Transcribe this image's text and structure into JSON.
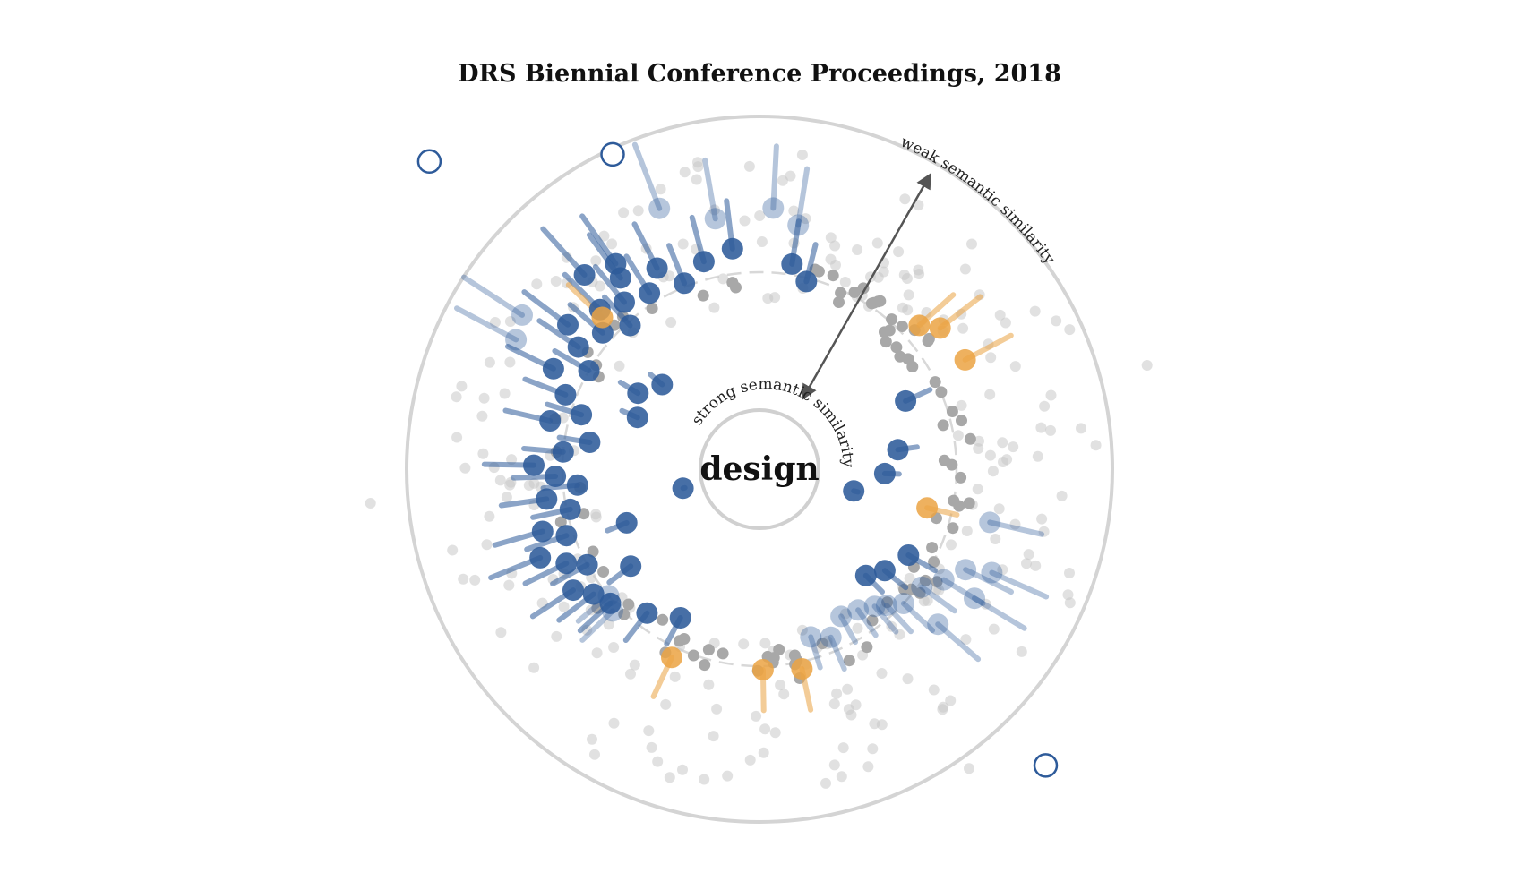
{
  "chart_data": {
    "type": "scatter",
    "subtype": "radial-similarity",
    "title": "DRS Biennial Conference Proceedings, 2018",
    "center_term": "design",
    "labels": {
      "outer": "weak semantic similarity",
      "inner": "strong semantic similarity"
    },
    "axis": {
      "radial_meaning": "semantic distance from center term",
      "range": [
        0,
        1
      ],
      "reference_ring": 0.55
    },
    "colors": {
      "highlight_blue": "#2e5b9a",
      "highlight_orange": "#eba343",
      "background": "#c8c8c8",
      "inner_ring": "#a8a8a8",
      "frame": "#d4d4d4",
      "arrow": "#555555"
    },
    "series": [
      {
        "name": "blue",
        "points": [
          {
            "angle": 233,
            "r": 0.58
          },
          {
            "angle": 237,
            "r": 0.62
          },
          {
            "angle": 241,
            "r": 0.55
          },
          {
            "angle": 244,
            "r": 0.6
          },
          {
            "angle": 248,
            "r": 0.66
          },
          {
            "angle": 251,
            "r": 0.57
          },
          {
            "angle": 254,
            "r": 0.63
          },
          {
            "angle": 258,
            "r": 0.54
          },
          {
            "angle": 262,
            "r": 0.6
          },
          {
            "angle": 265,
            "r": 0.51
          },
          {
            "angle": 268,
            "r": 0.57
          },
          {
            "angle": 271,
            "r": 0.63
          },
          {
            "angle": 275,
            "r": 0.55
          },
          {
            "angle": 279,
            "r": 0.48
          },
          {
            "angle": 283,
            "r": 0.6
          },
          {
            "angle": 287,
            "r": 0.52
          },
          {
            "angle": 291,
            "r": 0.58
          },
          {
            "angle": 296,
            "r": 0.64
          },
          {
            "angle": 300,
            "r": 0.55
          },
          {
            "angle": 304,
            "r": 0.61
          },
          {
            "angle": 307,
            "r": 0.67
          },
          {
            "angle": 311,
            "r": 0.58
          },
          {
            "angle": 315,
            "r": 0.63
          },
          {
            "angle": 318,
            "r": 0.54
          },
          {
            "angle": 321,
            "r": 0.6
          },
          {
            "angle": 324,
            "r": 0.66
          },
          {
            "angle": 328,
            "r": 0.58
          },
          {
            "angle": 333,
            "r": 0.63
          },
          {
            "angle": 338,
            "r": 0.56
          },
          {
            "angle": 345,
            "r": 0.6
          },
          {
            "angle": 353,
            "r": 0.62
          },
          {
            "angle": 9,
            "r": 0.58
          },
          {
            "angle": 14,
            "r": 0.54
          },
          {
            "angle": 256,
            "r": 0.22
          },
          {
            "angle": 248,
            "r": 0.4
          },
          {
            "angle": 233,
            "r": 0.45
          },
          {
            "angle": 228,
            "r": 0.56
          },
          {
            "angle": 293,
            "r": 0.37
          },
          {
            "angle": 302,
            "r": 0.4
          },
          {
            "angle": 311,
            "r": 0.36
          },
          {
            "angle": 103,
            "r": 0.27
          },
          {
            "angle": 92,
            "r": 0.35
          },
          {
            "angle": 82,
            "r": 0.39
          },
          {
            "angle": 65,
            "r": 0.45
          },
          {
            "angle": 120,
            "r": 0.48
          },
          {
            "angle": 129,
            "r": 0.45
          },
          {
            "angle": 135,
            "r": 0.42
          },
          {
            "angle": 208,
            "r": 0.47
          },
          {
            "angle": 218,
            "r": 0.51
          },
          {
            "angle": 325,
            "r": 0.7
          },
          {
            "angle": 318,
            "r": 0.73
          }
        ]
      },
      {
        "name": "blue-faded",
        "points": [
          {
            "angle": 339,
            "r": 0.78
          },
          {
            "angle": 350,
            "r": 0.71
          },
          {
            "angle": 3,
            "r": 0.73
          },
          {
            "angle": 9,
            "r": 0.69
          },
          {
            "angle": 303,
            "r": 0.79
          },
          {
            "angle": 298,
            "r": 0.77
          },
          {
            "angle": 103,
            "r": 0.66
          },
          {
            "angle": 114,
            "r": 0.71
          },
          {
            "angle": 116,
            "r": 0.64
          },
          {
            "angle": 121,
            "r": 0.6
          },
          {
            "angle": 126,
            "r": 0.56
          },
          {
            "angle": 133,
            "r": 0.55
          },
          {
            "angle": 137,
            "r": 0.52
          },
          {
            "angle": 140,
            "r": 0.5
          },
          {
            "angle": 145,
            "r": 0.48
          },
          {
            "angle": 151,
            "r": 0.47
          },
          {
            "angle": 157,
            "r": 0.51
          },
          {
            "angle": 163,
            "r": 0.49
          },
          {
            "angle": 131,
            "r": 0.66
          },
          {
            "angle": 121,
            "r": 0.7
          },
          {
            "angle": 226,
            "r": 0.57
          },
          {
            "angle": 230,
            "r": 0.55
          }
        ]
      },
      {
        "name": "orange",
        "points": [
          {
            "angle": 168,
            "r": 0.57
          },
          {
            "angle": 179,
            "r": 0.56
          },
          {
            "angle": 103,
            "r": 0.48
          },
          {
            "angle": 62,
            "r": 0.65
          },
          {
            "angle": 52,
            "r": 0.64
          },
          {
            "angle": 48,
            "r": 0.6
          },
          {
            "angle": 205,
            "r": 0.58
          },
          {
            "angle": 314,
            "r": 0.61
          }
        ]
      }
    ],
    "unmatched_markers": [
      {
        "angle": 313,
        "r": 1.26
      },
      {
        "angle": 335,
        "r": 0.97
      },
      {
        "angle": 136,
        "r": 1.15
      }
    ]
  }
}
